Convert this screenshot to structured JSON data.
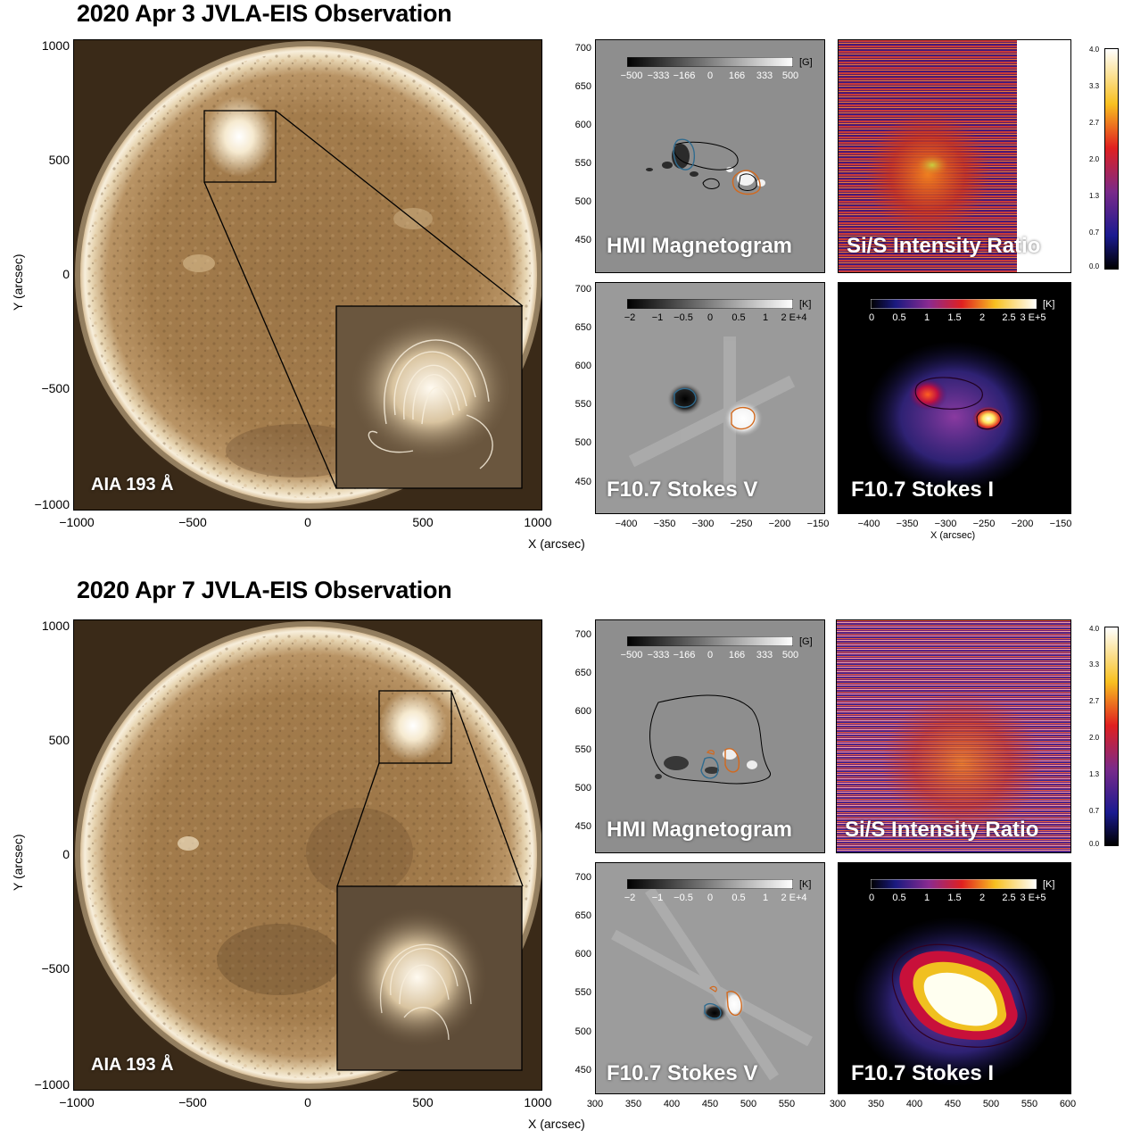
{
  "figure": {
    "rows": [
      {
        "title": "2020 Apr 3 JVLA-EIS Observation",
        "aia": {
          "label": "AIA 193 Å",
          "y_ticks": [
            "1000",
            "500",
            "0",
            "−500",
            "−1000"
          ],
          "x_ticks": [
            "−1000",
            "−500",
            "0",
            "500",
            "1000"
          ],
          "ylabel": "Y (arcsec)",
          "xlabel": "X (arcsec)"
        },
        "small_y_ticks": [
          "700",
          "650",
          "600",
          "550",
          "500",
          "450"
        ],
        "small_x_ticks": [
          "−400",
          "−350",
          "−300",
          "−250",
          "−200",
          "−150"
        ],
        "small_xlabel": "X (arcsec)",
        "hmi": {
          "label": "HMI Magnetogram",
          "cb_unit": "[G]",
          "cb_ticks": [
            "−500",
            "−333",
            "−166",
            "0",
            "166",
            "333",
            "500"
          ]
        },
        "ratio": {
          "label": "Si/S Intensity Ratio"
        },
        "stokes_v": {
          "label": "F10.7 Stokes V",
          "cb_unit": "[K]",
          "cb_ticks": [
            "−2",
            "−1",
            "−0.5",
            "0",
            "0.5",
            "1",
            "2 E+4"
          ]
        },
        "stokes_i": {
          "label": "F10.7 Stokes I",
          "cb_unit": "[K]",
          "cb_ticks": [
            "0",
            "0.5",
            "1",
            "1.5",
            "2",
            "2.5",
            "3 E+5"
          ]
        },
        "ratio_cb_ticks": [
          "4.0",
          "3.3",
          "2.7",
          "2.0",
          "1.3",
          "0.7",
          "0.0"
        ]
      },
      {
        "title": "2020 Apr 7 JVLA-EIS Observation",
        "aia": {
          "label": "AIA 193 Å",
          "y_ticks": [
            "1000",
            "500",
            "0",
            "−500",
            "−1000"
          ],
          "x_ticks": [
            "−1000",
            "−500",
            "0",
            "500",
            "1000"
          ],
          "ylabel": "Y (arcsec)",
          "xlabel": "X (arcsec)"
        },
        "small_y_ticks": [
          "700",
          "650",
          "600",
          "550",
          "500",
          "450"
        ],
        "small_x_ticks": [
          "300",
          "350",
          "400",
          "450",
          "500",
          "550",
          "600"
        ],
        "hmi": {
          "label": "HMI Magnetogram",
          "cb_unit": "[G]",
          "cb_ticks": [
            "−500",
            "−333",
            "−166",
            "0",
            "166",
            "333",
            "500"
          ]
        },
        "ratio": {
          "label": "Si/S Intensity Ratio"
        },
        "stokes_v": {
          "label": "F10.7 Stokes V",
          "cb_unit": "[K]",
          "cb_ticks": [
            "−2",
            "−1",
            "−0.5",
            "0",
            "0.5",
            "1",
            "2 E+4"
          ]
        },
        "stokes_i": {
          "label": "F10.7 Stokes I",
          "cb_unit": "[K]",
          "cb_ticks": [
            "0",
            "0.5",
            "1",
            "1.5",
            "2",
            "2.5",
            "3 E+5"
          ]
        },
        "ratio_cb_ticks": [
          "4.0",
          "3.3",
          "2.7",
          "2.0",
          "1.3",
          "0.7",
          "0.0"
        ]
      }
    ],
    "colors": {
      "solar_disk": "#a07a4a",
      "limb": "#f2e6cc",
      "hmi_gray": "#8c8c8c",
      "contour_blue": "#2f6b8f",
      "contour_orange": "#d2691e",
      "stokes_i_bg": "#000000"
    }
  }
}
